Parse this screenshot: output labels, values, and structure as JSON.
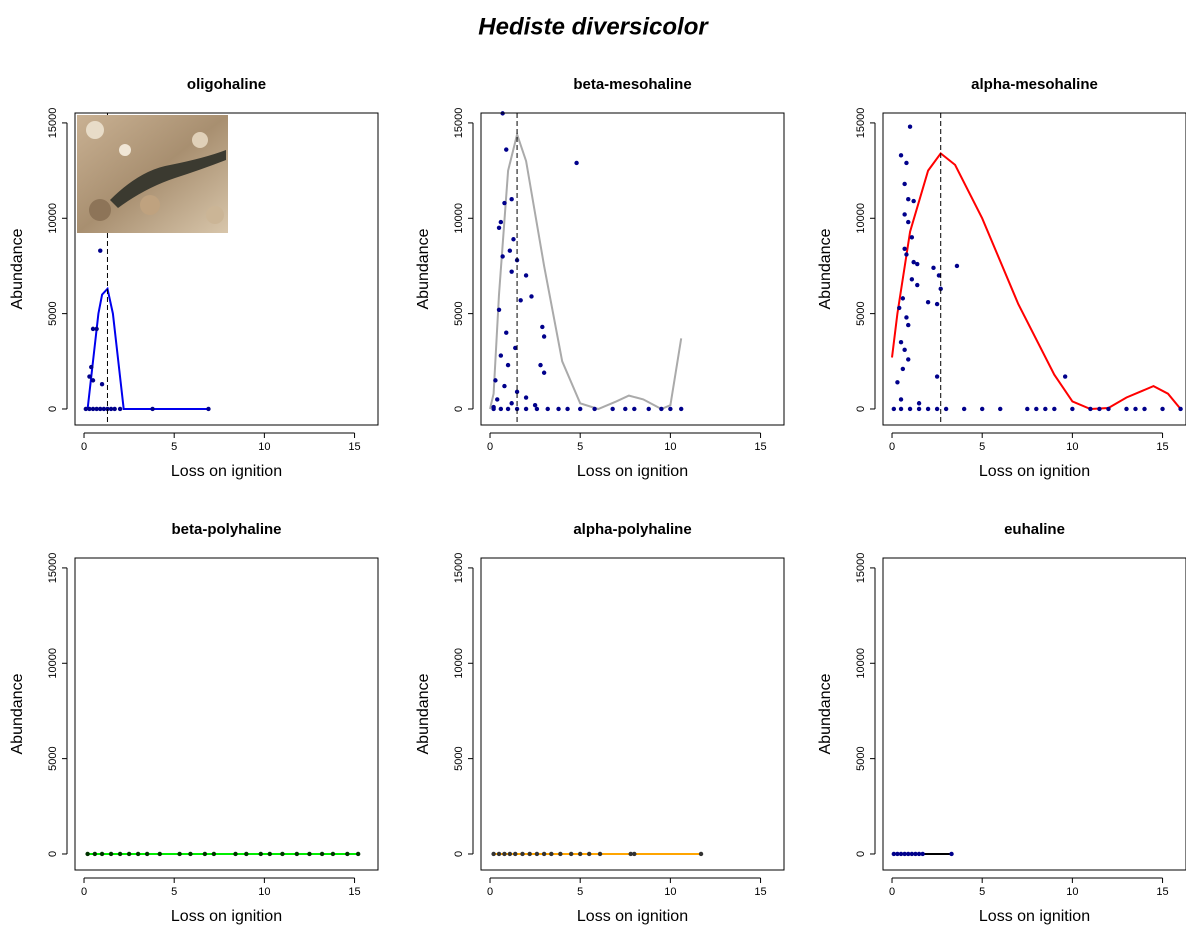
{
  "title": "Hediste diversicolor",
  "chart_data": [
    {
      "type": "scatter",
      "title": "oligohaline",
      "x_label": "Loss on ignition",
      "y_label": "Abundance",
      "xlim": [
        -0.5,
        16.3
      ],
      "ylim": [
        -840,
        15520
      ],
      "xticks": [
        0,
        5,
        10,
        15
      ],
      "yticks": [
        0,
        5000,
        10000,
        15000
      ],
      "points": {
        "color": "#00008b",
        "x": [
          0.9,
          0.5,
          0.7,
          0.4,
          0.5,
          0.3,
          1.0,
          0.1,
          0.3,
          0.5,
          0.7,
          0.9,
          1.1,
          1.3,
          1.5,
          1.7,
          2.0,
          3.8,
          6.9
        ],
        "y": [
          8300,
          4200,
          4200,
          2200,
          1500,
          1700,
          1300,
          0,
          0,
          0,
          0,
          0,
          0,
          0,
          0,
          0,
          0,
          0,
          0
        ]
      },
      "curve": {
        "color": "#0000ee",
        "x": [
          0.2,
          0.5,
          0.8,
          1.0,
          1.3,
          1.6,
          1.9,
          2.2,
          4.0,
          6.9
        ],
        "y": [
          0,
          2500,
          5000,
          6000,
          6300,
          5000,
          2500,
          0,
          0,
          0
        ]
      },
      "optimum": 1.3
    },
    {
      "type": "scatter",
      "title": "beta-mesohaline",
      "x_label": "Loss on ignition",
      "y_label": "Abundance",
      "xlim": [
        -0.5,
        16.3
      ],
      "ylim": [
        -840,
        15520
      ],
      "xticks": [
        0,
        5,
        10,
        15
      ],
      "yticks": [
        0,
        5000,
        10000,
        15000
      ],
      "points": {
        "color": "#00008b",
        "x": [
          0.7,
          4.8,
          0.9,
          1.2,
          0.8,
          0.6,
          0.5,
          1.3,
          1.1,
          0.7,
          1.5,
          1.2,
          2.0,
          2.3,
          1.7,
          2.9,
          3.0,
          2.8,
          3.0,
          0.5,
          0.9,
          1.4,
          0.6,
          1.0,
          0.3,
          0.8,
          1.5,
          2.0,
          0.4,
          1.2,
          2.5,
          0.2,
          0.2,
          0.6,
          1.0,
          1.5,
          2.0,
          2.6,
          3.2,
          3.8,
          4.3,
          5.0,
          5.8,
          6.8,
          7.5,
          8.0,
          8.8,
          9.5,
          10.0,
          10.6
        ],
        "y": [
          15500,
          12900,
          13600,
          11000,
          10800,
          9800,
          9500,
          8900,
          8300,
          8000,
          7800,
          7200,
          7000,
          5900,
          5700,
          4300,
          3800,
          2300,
          1900,
          5200,
          4000,
          3200,
          2800,
          2300,
          1500,
          1200,
          900,
          600,
          500,
          300,
          200,
          100,
          0,
          0,
          0,
          0,
          0,
          0,
          0,
          0,
          0,
          0,
          0,
          0,
          0,
          0,
          0,
          0,
          0,
          0
        ]
      },
      "curve": {
        "color": "#aaaaaa",
        "x": [
          0,
          0.2,
          0.5,
          1.0,
          1.5,
          2.0,
          3.0,
          4.0,
          5.0,
          6.0,
          7.0,
          7.7,
          8.5,
          9.5,
          10.0,
          10.6
        ],
        "y": [
          0,
          800,
          6000,
          12500,
          14400,
          13000,
          7500,
          2500,
          300,
          0,
          400,
          700,
          500,
          0,
          200,
          3700
        ]
      },
      "optimum": 1.5
    },
    {
      "type": "scatter",
      "title": "alpha-mesohaline",
      "x_label": "Loss on ignition",
      "y_label": "Abundance",
      "xlim": [
        -0.5,
        16.3
      ],
      "ylim": [
        -840,
        15520
      ],
      "xticks": [
        0,
        5,
        10,
        15
      ],
      "yticks": [
        0,
        5000,
        10000,
        15000
      ],
      "points": {
        "color": "#00008b",
        "x": [
          1.0,
          0.5,
          0.8,
          0.7,
          0.9,
          1.2,
          0.7,
          0.9,
          1.1,
          0.7,
          0.8,
          1.2,
          1.4,
          2.3,
          3.6,
          2.6,
          1.1,
          1.4,
          2.7,
          0.6,
          0.4,
          2.0,
          2.5,
          0.8,
          0.9,
          0.5,
          0.7,
          0.9,
          0.6,
          2.5,
          0.3,
          9.6,
          0.5,
          1.5,
          0.1,
          0.5,
          1.0,
          1.5,
          2.0,
          2.5,
          3.0,
          4.0,
          5.0,
          6.0,
          7.5,
          8.0,
          8.5,
          9.0,
          10.0,
          11.0,
          11.5,
          12.0,
          13.0,
          13.5,
          14.0,
          15.0,
          16.0
        ],
        "y": [
          14800,
          13300,
          12900,
          11800,
          11000,
          10900,
          10200,
          9800,
          9000,
          8400,
          8100,
          7700,
          7600,
          7400,
          7500,
          7000,
          6800,
          6500,
          6300,
          5800,
          5300,
          5600,
          5500,
          4800,
          4400,
          3500,
          3100,
          2600,
          2100,
          1700,
          1400,
          1700,
          500,
          300,
          0,
          0,
          0,
          0,
          0,
          0,
          0,
          0,
          0,
          0,
          0,
          0,
          0,
          0,
          0,
          0,
          0,
          0,
          0,
          0,
          0,
          0,
          0
        ]
      },
      "curve": {
        "color": "#ff0000",
        "x": [
          0,
          0.3,
          1.0,
          2.0,
          2.7,
          3.5,
          5.0,
          7.0,
          9.0,
          10.0,
          11.0,
          12.0,
          13.0,
          14.5,
          15.3,
          16.0
        ],
        "y": [
          2700,
          5000,
          9300,
          12500,
          13400,
          12800,
          10000,
          5500,
          1800,
          400,
          0,
          50,
          600,
          1200,
          800,
          0
        ]
      },
      "optimum": 2.7
    },
    {
      "type": "scatter",
      "title": "beta-polyhaline",
      "x_label": "Loss on ignition",
      "y_label": "Abundance",
      "xlim": [
        -0.5,
        16.3
      ],
      "ylim": [
        -840,
        15520
      ],
      "xticks": [
        0,
        5,
        10,
        15
      ],
      "yticks": [
        0,
        5000,
        10000,
        15000
      ],
      "points": {
        "color": "#003300",
        "x": [
          0.2,
          0.6,
          1.0,
          1.5,
          2.0,
          2.5,
          3.0,
          3.5,
          4.2,
          5.3,
          5.9,
          6.7,
          7.2,
          8.4,
          9.0,
          9.8,
          10.3,
          11.0,
          11.8,
          12.5,
          13.2,
          13.8,
          14.6,
          15.2
        ],
        "y": [
          0,
          0,
          0,
          0,
          0,
          0,
          0,
          0,
          0,
          0,
          0,
          0,
          0,
          0,
          0,
          0,
          0,
          0,
          0,
          0,
          0,
          0,
          0,
          0
        ]
      },
      "curve": {
        "color": "#00ee00",
        "x": [
          0.2,
          15.2
        ],
        "y": [
          0,
          0
        ]
      }
    },
    {
      "type": "scatter",
      "title": "alpha-polyhaline",
      "x_label": "Loss on ignition",
      "y_label": "Abundance",
      "xlim": [
        -0.5,
        16.3
      ],
      "ylim": [
        -840,
        15520
      ],
      "xticks": [
        0,
        5,
        10,
        15
      ],
      "yticks": [
        0,
        5000,
        10000,
        15000
      ],
      "points": {
        "color": "#333333",
        "x": [
          0.2,
          0.5,
          0.8,
          1.1,
          1.4,
          1.8,
          2.2,
          2.6,
          3.0,
          3.4,
          3.9,
          4.5,
          5.0,
          5.5,
          6.1,
          7.8,
          8.0,
          11.7
        ],
        "y": [
          0,
          0,
          0,
          0,
          0,
          0,
          0,
          0,
          0,
          0,
          0,
          0,
          0,
          0,
          0,
          0,
          0,
          0
        ]
      },
      "curve": {
        "color": "#ffa500",
        "x": [
          0.2,
          11.7
        ],
        "y": [
          0,
          0
        ]
      }
    },
    {
      "type": "scatter",
      "title": "euhaline",
      "x_label": "Loss on ignition",
      "y_label": "Abundance",
      "xlim": [
        -0.5,
        16.3
      ],
      "ylim": [
        -840,
        15520
      ],
      "xticks": [
        0,
        5,
        10,
        15
      ],
      "yticks": [
        0,
        5000,
        10000,
        15000
      ],
      "points": {
        "color": "#00008b",
        "x": [
          0.1,
          0.3,
          0.5,
          0.7,
          0.9,
          1.1,
          1.3,
          1.5,
          1.7,
          3.3
        ],
        "y": [
          0,
          0,
          0,
          0,
          0,
          0,
          0,
          0,
          0,
          0
        ]
      },
      "curve": {
        "color": "#000000",
        "x": [
          0.1,
          3.3
        ],
        "y": [
          0,
          0
        ]
      }
    }
  ]
}
